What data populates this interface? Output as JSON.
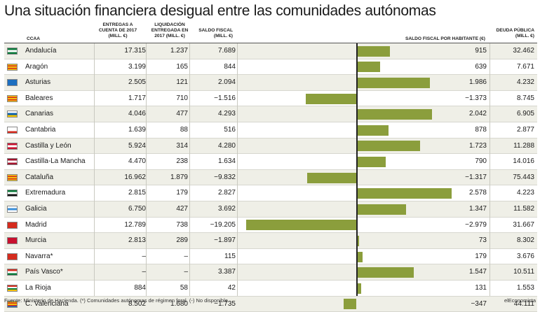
{
  "title": "Una situación financiera desigual entre las comunidades autónomas",
  "headers": {
    "ccaa": "CCAA",
    "entregas_1": "ENTREGAS A",
    "entregas_2": "CUENTA DE 2017",
    "entregas_3": "(MILL. €)",
    "liquidacion_1": "LIQUIDACIÓN",
    "liquidacion_2": "ENTREGADA EN",
    "liquidacion_3": "2017 (MILL. €)",
    "saldo_fiscal_1": "SALDO FISCAL",
    "saldo_fiscal_2": "(MILL. €)",
    "saldo_hab": "SALDO FISCAL POR HABITANTE (€)",
    "deuda_1": "DEUDA PÚBLICA",
    "deuda_2": "(MILL. €)"
  },
  "rows": [
    {
      "name": "Andalucía",
      "entregas": "17.315",
      "liquidacion": "1.237",
      "saldo": "7.689",
      "saldo_hab_label": "915",
      "deuda": "32.462",
      "flag": [
        "#0a7a3a",
        "#ffffff",
        "#0a7a3a"
      ]
    },
    {
      "name": "Aragón",
      "entregas": "3.199",
      "liquidacion": "165",
      "saldo": "844",
      "saldo_hab_label": "639",
      "deuda": "7.671",
      "flag": [
        "#f4c20d",
        "#d52b1e",
        "#f4c20d",
        "#d52b1e",
        "#f4c20d"
      ]
    },
    {
      "name": "Asturias",
      "entregas": "2.505",
      "liquidacion": "121",
      "saldo": "2.094",
      "saldo_hab_label": "1.986",
      "deuda": "4.232",
      "flag": [
        "#1d6fc0",
        "#1d6fc0",
        "#1d6fc0"
      ]
    },
    {
      "name": "Baleares",
      "entregas": "1.717",
      "liquidacion": "710",
      "saldo": "−1.516",
      "saldo_hab_label": "−1.373",
      "deuda": "8.745",
      "flag": [
        "#f4c20d",
        "#d52b1e",
        "#f4c20d",
        "#d52b1e",
        "#f4c20d"
      ]
    },
    {
      "name": "Canarias",
      "entregas": "4.046",
      "liquidacion": "477",
      "saldo": "4.293",
      "saldo_hab_label": "2.042",
      "deuda": "6.905",
      "flag": [
        "#ffffff",
        "#0b5fad",
        "#f5c400"
      ]
    },
    {
      "name": "Cantabria",
      "entregas": "1.639",
      "liquidacion": "88",
      "saldo": "516",
      "saldo_hab_label": "878",
      "deuda": "2.877",
      "flag": [
        "#ffffff",
        "#ffffff",
        "#d52b1e"
      ]
    },
    {
      "name": "Castilla y León",
      "entregas": "5.924",
      "liquidacion": "314",
      "saldo": "4.280",
      "saldo_hab_label": "1.723",
      "deuda": "11.288",
      "flag": [
        "#c8102e",
        "#ffffff",
        "#c8102e"
      ]
    },
    {
      "name": "Castilla-La Mancha",
      "entregas": "4.470",
      "liquidacion": "238",
      "saldo": "1.634",
      "saldo_hab_label": "790",
      "deuda": "14.016",
      "flag": [
        "#a3142e",
        "#ffffff",
        "#a3142e"
      ]
    },
    {
      "name": "Cataluña",
      "entregas": "16.962",
      "liquidacion": "1.879",
      "saldo": "−9.832",
      "saldo_hab_label": "−1.317",
      "deuda": "75.443",
      "flag": [
        "#f4c20d",
        "#d52b1e",
        "#f4c20d",
        "#d52b1e",
        "#f4c20d"
      ]
    },
    {
      "name": "Extremadura",
      "entregas": "2.815",
      "liquidacion": "179",
      "saldo": "2.827",
      "saldo_hab_label": "2.578",
      "deuda": "4.223",
      "flag": [
        "#0a7a3a",
        "#ffffff",
        "#111111"
      ]
    },
    {
      "name": "Galicia",
      "entregas": "6.750",
      "liquidacion": "427",
      "saldo": "3.692",
      "saldo_hab_label": "1.347",
      "deuda": "11.582",
      "flag": [
        "#ffffff",
        "#3b8fd8",
        "#ffffff"
      ]
    },
    {
      "name": "Madrid",
      "entregas": "12.789",
      "liquidacion": "738",
      "saldo": "−19.205",
      "saldo_hab_label": "−2.979",
      "deuda": "31.667",
      "flag": [
        "#d52b1e",
        "#d52b1e",
        "#d52b1e"
      ]
    },
    {
      "name": "Murcia",
      "entregas": "2.813",
      "liquidacion": "289",
      "saldo": "−1.897",
      "saldo_hab_label": "73",
      "deuda": "8.302",
      "flag": [
        "#c8102e",
        "#c8102e",
        "#c8102e"
      ]
    },
    {
      "name": "Navarra*",
      "entregas": "–",
      "liquidacion": "–",
      "saldo": "115",
      "saldo_hab_label": "179",
      "deuda": "3.676",
      "flag": [
        "#d52b1e",
        "#d52b1e",
        "#d52b1e"
      ]
    },
    {
      "name": "País Vasco*",
      "entregas": "–",
      "liquidacion": "–",
      "saldo": "3.387",
      "saldo_hab_label": "1.547",
      "deuda": "10.511",
      "flag": [
        "#d52b1e",
        "#ffffff",
        "#0a7a3a"
      ]
    },
    {
      "name": "La Rioja",
      "entregas": "884",
      "liquidacion": "58",
      "saldo": "42",
      "saldo_hab_label": "131",
      "deuda": "1.553",
      "flag": [
        "#d52b1e",
        "#ffffff",
        "#0a7a3a",
        "#f4c20d"
      ]
    },
    {
      "name": "C. Valenciana",
      "entregas": "8.502",
      "liquidacion": "1.680",
      "saldo": "−1.735",
      "saldo_hab_label": "−347",
      "deuda": "44.111",
      "flag": [
        "#f4c20d",
        "#d52b1e",
        "#f4c20d",
        "#d52b1e",
        "#1d6fc0"
      ]
    }
  ],
  "chart_data": {
    "type": "bar",
    "orientation": "horizontal",
    "categories": [
      "Andalucía",
      "Aragón",
      "Asturias",
      "Baleares",
      "Canarias",
      "Cantabria",
      "Castilla y León",
      "Castilla-La Mancha",
      "Cataluña",
      "Extremadura",
      "Galicia",
      "Madrid",
      "Murcia",
      "Navarra*",
      "País Vasco*",
      "La Rioja",
      "C. Valenciana"
    ],
    "series": [
      {
        "name": "SALDO FISCAL POR HABITANTE (€)",
        "values": [
          915,
          639,
          1986,
          -1373,
          2042,
          878,
          1723,
          790,
          -1317,
          2578,
          1347,
          -2979,
          73,
          179,
          1547,
          131,
          -347
        ]
      }
    ],
    "xlim": [
      -2979,
      2578
    ],
    "bar_color": "#8b9e3c"
  },
  "footer": {
    "source": "Fuente: Ministerio de Hacienda. (*) Comunidades autónomas de régimen foral. (-) No disponible.",
    "brand": "elEconomista"
  }
}
